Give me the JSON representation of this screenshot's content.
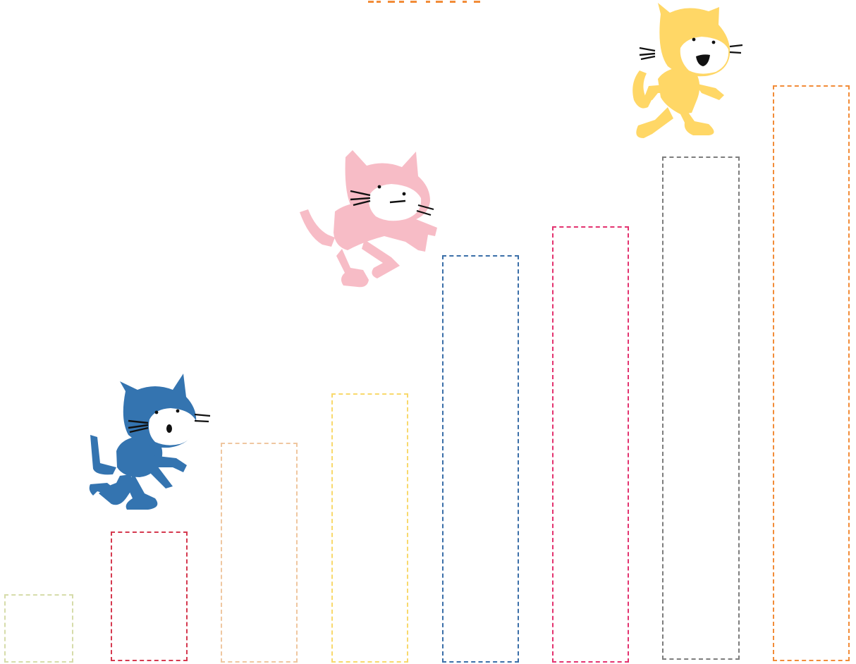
{
  "scene": {
    "steps": [
      {
        "color": "#d6dcaa"
      },
      {
        "color": "#d5394f"
      },
      {
        "color": "#efc7a0"
      },
      {
        "color": "#f8d96c"
      },
      {
        "color": "#3a6ea8"
      },
      {
        "color": "#e3326f"
      },
      {
        "color": "#7d7d7d"
      },
      {
        "color": "#f28c38"
      }
    ],
    "cats": [
      {
        "name": "blue-cat",
        "color": "#3474b0"
      },
      {
        "name": "pink-cat",
        "color": "#f7bcc6"
      },
      {
        "name": "yellow-cat",
        "color": "#ffd766"
      }
    ],
    "top_text_color": "#f28c38"
  }
}
